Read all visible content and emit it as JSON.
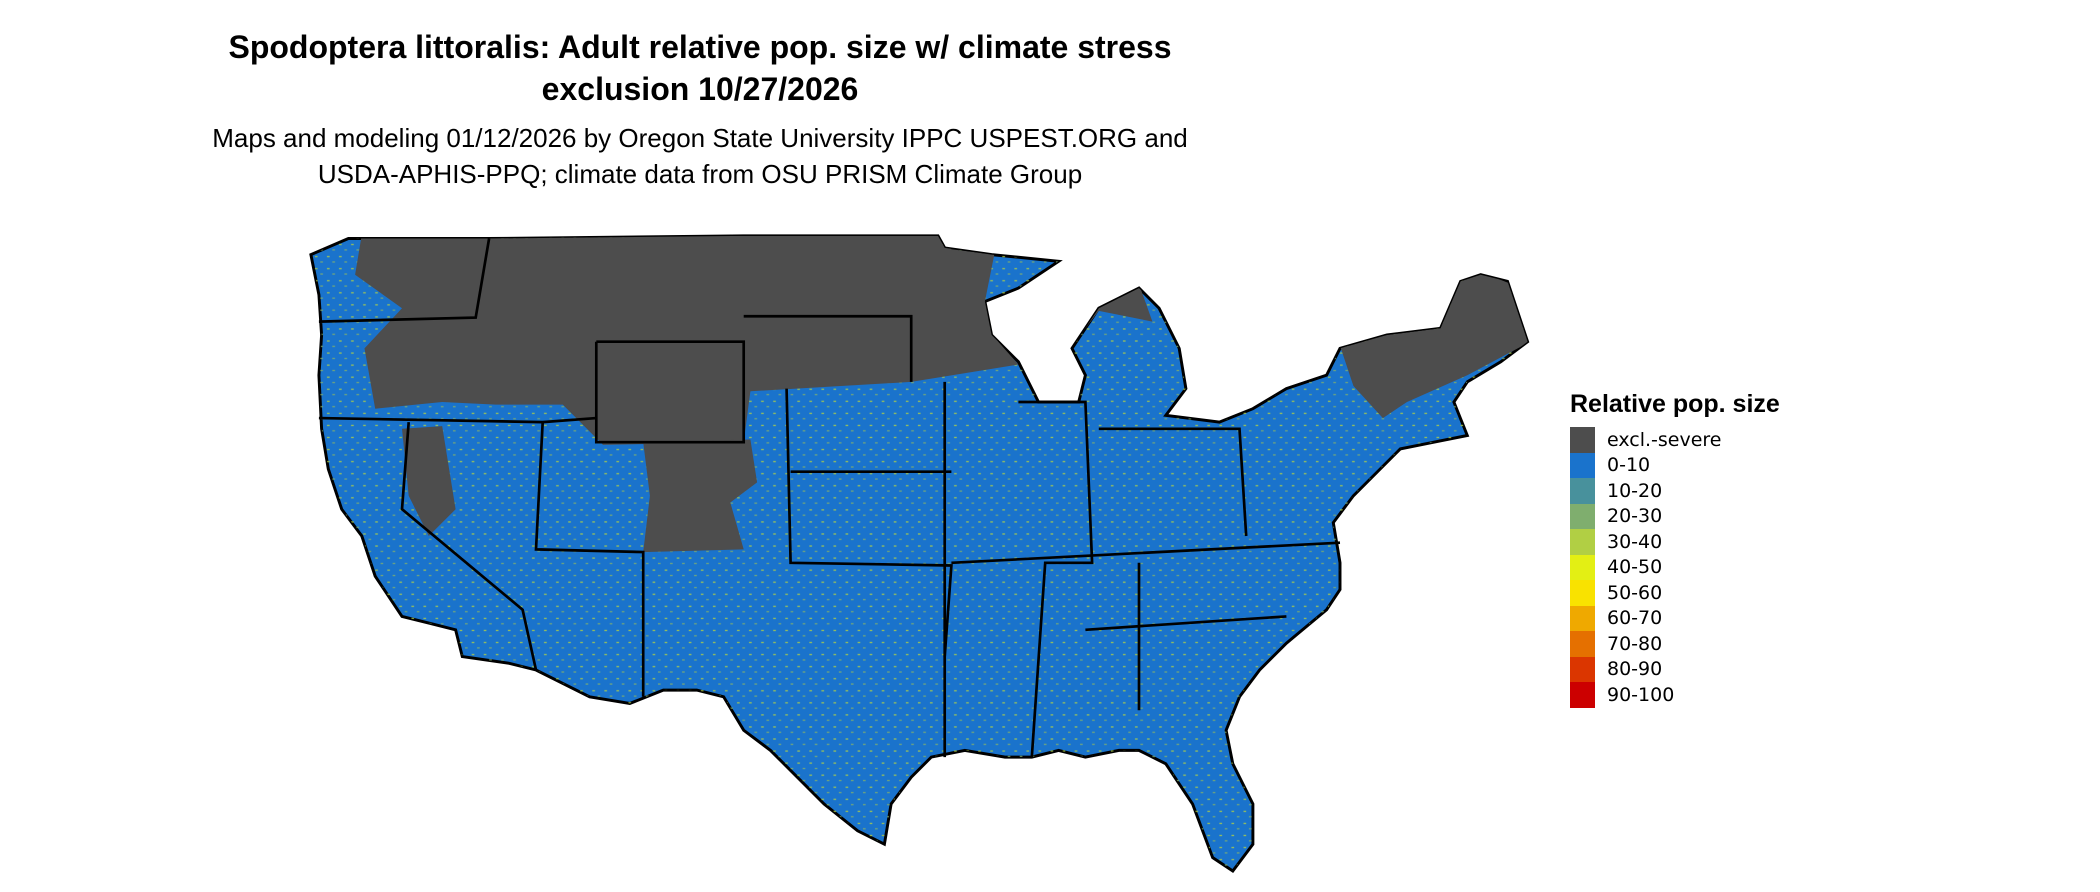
{
  "title_line1": "Spodoptera littoralis: Adult relative pop. size w/ climate stress",
  "title_line2": "exclusion 10/27/2026",
  "subtitle_line1": "Maps and modeling 01/12/2026 by Oregon State University IPPC USPEST.ORG and",
  "subtitle_line2": "USDA-APHIS-PPQ; climate data from OSU PRISM Climate Group",
  "legend": {
    "title": "Relative pop. size",
    "items": [
      {
        "label": "excl.-severe",
        "color": "#4d4d4d"
      },
      {
        "label": "0-10",
        "color": "#1a73cc"
      },
      {
        "label": "10-20",
        "color": "#48919c"
      },
      {
        "label": "20-30",
        "color": "#7fae6e"
      },
      {
        "label": "30-40",
        "color": "#b1cf44"
      },
      {
        "label": "40-50",
        "color": "#e3ef14"
      },
      {
        "label": "50-60",
        "color": "#f9e200"
      },
      {
        "label": "60-70",
        "color": "#efa900"
      },
      {
        "label": "70-80",
        "color": "#e57000"
      },
      {
        "label": "80-90",
        "color": "#db3600"
      },
      {
        "label": "90-100",
        "color": "#cc0000"
      }
    ]
  },
  "map": {
    "region": "Contiguous United States",
    "dominant_class": "0-10",
    "excluded_class": "excl.-severe"
  }
}
